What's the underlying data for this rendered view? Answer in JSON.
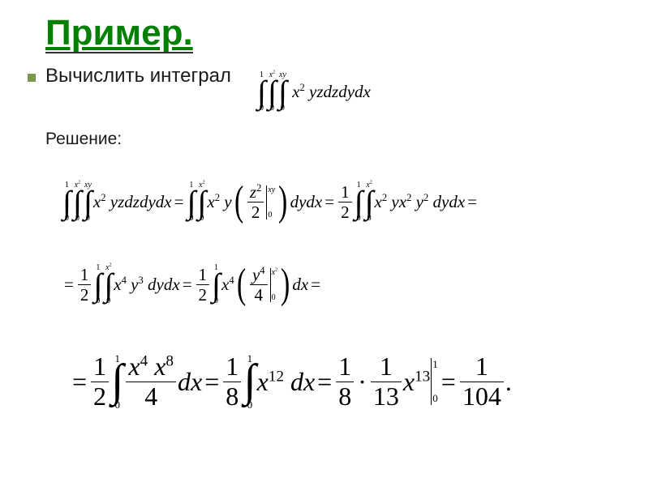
{
  "title": "Пример.",
  "bullet_text": "Вычислить интеграл",
  "solution_label": "Решение:",
  "colors": {
    "title": "#008000",
    "bullet_square": "#7a994d",
    "text": "#1a1a1a",
    "math": "#000000",
    "background": "#ffffff"
  },
  "fontsizes_pt": {
    "title": 33,
    "body": 18,
    "solution": 16,
    "math_small": 16,
    "math_large": 24
  },
  "integrals": {
    "outer_lower": "0",
    "outer_upper": "1",
    "middle_lower": "0",
    "middle_upper": "x²",
    "inner_lower": "0",
    "inner_upper": "xy"
  },
  "integrand": "x² yz",
  "differentials": "dzdydx",
  "step_z_eval": {
    "expr": "z² / 2",
    "from": "0",
    "to": "xy"
  },
  "after_z": "x² y · x² y² / 2",
  "coeff_half": "1/2",
  "after_simplify1": "x⁴ y³",
  "step_y_eval": {
    "expr": "y⁴ / 4",
    "from": "0",
    "to": "x²"
  },
  "after_y": "x⁴ · x⁸ / 4",
  "coeff_eighth": "1/8",
  "after_simplify2": "x¹²",
  "step_x_eval": {
    "expr": "x¹³ / 13",
    "from": "0",
    "to": "1"
  },
  "final_product": "1/8 · 1/13",
  "result": "1/104",
  "glyphs": {
    "integral": "∫",
    "mid_dot": "·",
    "equals": "=",
    "period": "."
  },
  "labels": {
    "x": "x",
    "y": "y",
    "z": "z",
    "d": "d"
  },
  "numbers": {
    "zero": "0",
    "one": "1",
    "two": "2",
    "three": "3",
    "four": "4",
    "eight": "8",
    "twelve": "12",
    "thirteen": "13",
    "onehundredfour": "104"
  }
}
